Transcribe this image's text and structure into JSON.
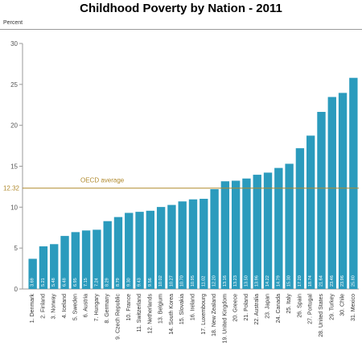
{
  "chart_data": {
    "type": "bar",
    "title": "Childhood Poverty by Nation - 2011",
    "ylabel": "Percent",
    "xlabel": "",
    "ylim": [
      0,
      30
    ],
    "yticks": [
      0,
      5,
      10,
      15,
      20,
      25,
      30
    ],
    "grid": false,
    "bar_color": "#2b9bbd",
    "categories": [
      "1. Denmark",
      "2. Finland",
      "3. Norway",
      "4. Iceland",
      "5. Sweden",
      "6. Austria",
      "7. Hungary",
      "8. Germany",
      "9. Czech Republic",
      "10. France",
      "11. Switzerland",
      "12. Netherlands",
      "13. Belgium",
      "14. South Korea",
      "15. Slovakia",
      "16. Ireland",
      "17. Luxembourg",
      "18. New Zealand",
      "19. United Kingdom",
      "20. Greece",
      "21. Poland",
      "22. Australia",
      "23. Japan",
      "24. Canada",
      "25. Italy",
      "26. Spain",
      "27. Portugal",
      "28. United States",
      "29. Turkey",
      "30. Chile",
      "31. Mexico"
    ],
    "values": [
      3.69,
      5.21,
      5.48,
      6.48,
      6.95,
      7.15,
      7.24,
      8.29,
      8.79,
      9.3,
      9.43,
      9.56,
      10.02,
      10.27,
      10.7,
      10.95,
      11.02,
      12.2,
      13.16,
      13.23,
      13.5,
      13.96,
      14.22,
      14.79,
      15.3,
      17.2,
      18.74,
      21.64,
      23.46,
      23.96,
      25.8
    ],
    "value_labels": [
      "3.69",
      "5.21",
      "5.48",
      "6.48",
      "6.95",
      "7.15",
      "7.24",
      "8.29",
      "8.79",
      "9.30",
      "9.43",
      "9.56",
      "10.02",
      "10.27",
      "10.70",
      "10.95",
      "11.02",
      "12.20",
      "13.16",
      "13.23",
      "13.50",
      "13.96",
      "14.22",
      "14.79",
      "15.30",
      "17.20",
      "18.74",
      "21.64",
      "23.46",
      "23.96",
      "25.80"
    ],
    "reference_line": {
      "label": "OECD average",
      "value": 12.32,
      "value_label": "12.32",
      "color": "#b08a2e"
    }
  }
}
